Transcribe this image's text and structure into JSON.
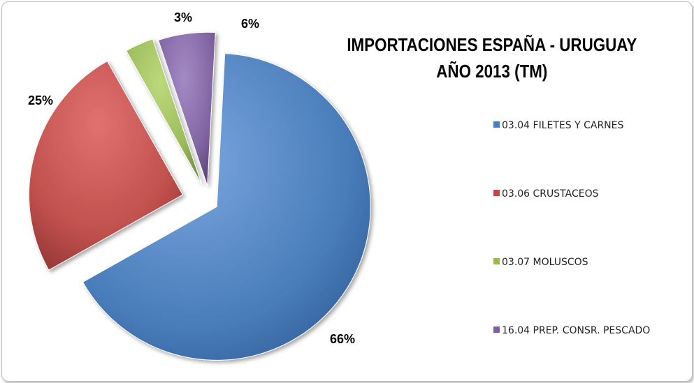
{
  "chart_data": {
    "type": "pie",
    "title": [
      "IMPORTACIONES ESPAÑA -  URUGUAY",
      "AÑO 2013 (TM)"
    ],
    "categories": [
      "03.04 FILETES Y CARNES",
      "03.06 CRUSTACEOS",
      "03.07 MOLUSCOS",
      "16.04 PREP. CONSR. PESCADO"
    ],
    "values": [
      66,
      25,
      3,
      6
    ],
    "data_labels": [
      "66%",
      "25%",
      "3%",
      "6%"
    ],
    "colors": [
      "#4a7ebb",
      "#be4b48",
      "#98b954",
      "#7d60a0"
    ],
    "exploded": true,
    "legend_position": "right"
  }
}
